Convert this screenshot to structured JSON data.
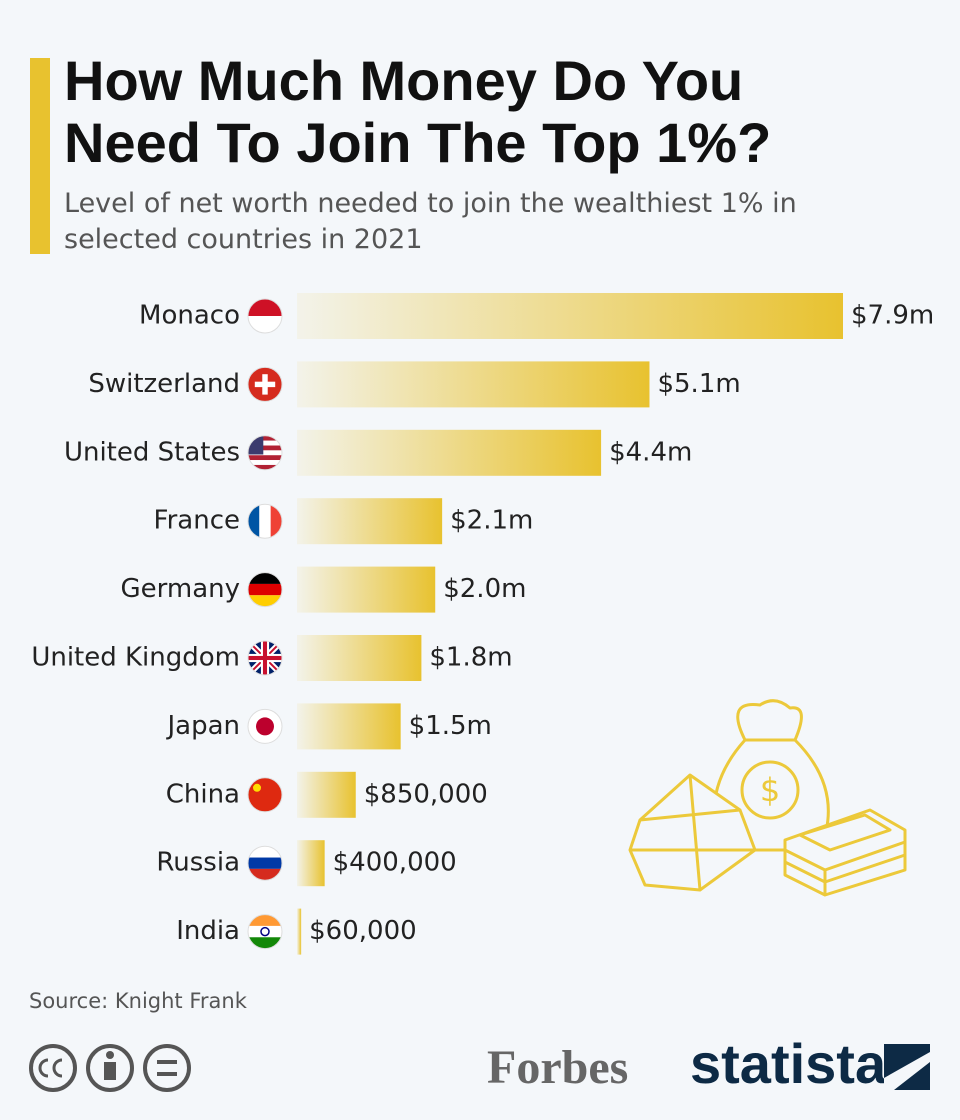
{
  "chart_data": {
    "type": "bar",
    "title": "How Much Money Do You Need To Join The Top 1%?",
    "subtitle": "Level of net worth needed to join the wealthiest 1% in selected countries in 2021",
    "categories": [
      "Monaco",
      "Switzerland",
      "United States",
      "France",
      "Germany",
      "United Kingdom",
      "Japan",
      "China",
      "Russia",
      "India"
    ],
    "values": [
      7900000,
      5100000,
      4400000,
      2100000,
      2000000,
      1800000,
      1500000,
      850000,
      400000,
      60000
    ],
    "value_labels": [
      "$7.9m",
      "$5.1m",
      "$4.4m",
      "$2.1m",
      "$2.0m",
      "$1.8m",
      "$1.5m",
      "$850,000",
      "$400,000",
      "$60,000"
    ],
    "color": "#e8c22f",
    "source": "Source: Knight Frank",
    "logos": [
      "Forbes",
      "statista"
    ]
  }
}
